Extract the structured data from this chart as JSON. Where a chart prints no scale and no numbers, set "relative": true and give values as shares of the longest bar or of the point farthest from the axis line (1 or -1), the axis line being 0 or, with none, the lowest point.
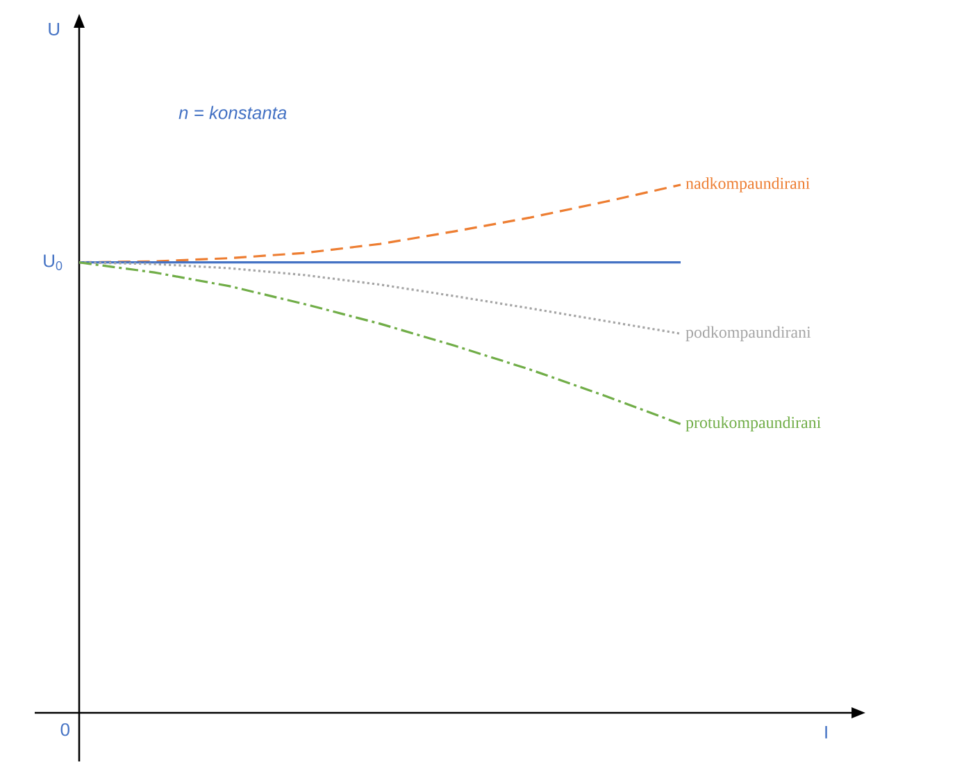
{
  "chart_data": {
    "type": "line",
    "relative": true,
    "legend": false,
    "marker": "none",
    "categories": [
      null,
      null,
      null,
      null,
      null,
      null,
      null,
      null,
      null
    ],
    "series": [
      {
        "name": "nadkompaundirani",
        "color": "#ed7d31",
        "line_style": "dashed",
        "values": [
          0.853,
          0.855,
          0.861,
          0.871,
          0.888,
          0.912,
          0.938,
          0.968,
          1
        ]
      },
      {
        "color": "#4472c4",
        "line_style": "solid",
        "values": [
          0.853,
          0.853,
          0.853,
          0.853,
          0.853,
          0.853,
          0.853,
          0.853,
          0.853
        ]
      },
      {
        "name": "podkompaundirani",
        "color": "#a5a5a5",
        "line_style": "dotted",
        "values": [
          0.853,
          0.85,
          0.842,
          0.829,
          0.811,
          0.789,
          0.766,
          0.742,
          0.718
        ]
      },
      {
        "name": "protukompaundirani",
        "color": "#70ad47",
        "line_style": "dash-dot",
        "values": [
          0.853,
          0.834,
          0.808,
          0.774,
          0.737,
          0.695,
          0.65,
          0.6,
          0.547
        ]
      }
    ],
    "annotations": [
      "n = konstanta",
      "U$_{0}$",
      "0",
      "U",
      "I"
    ]
  }
}
